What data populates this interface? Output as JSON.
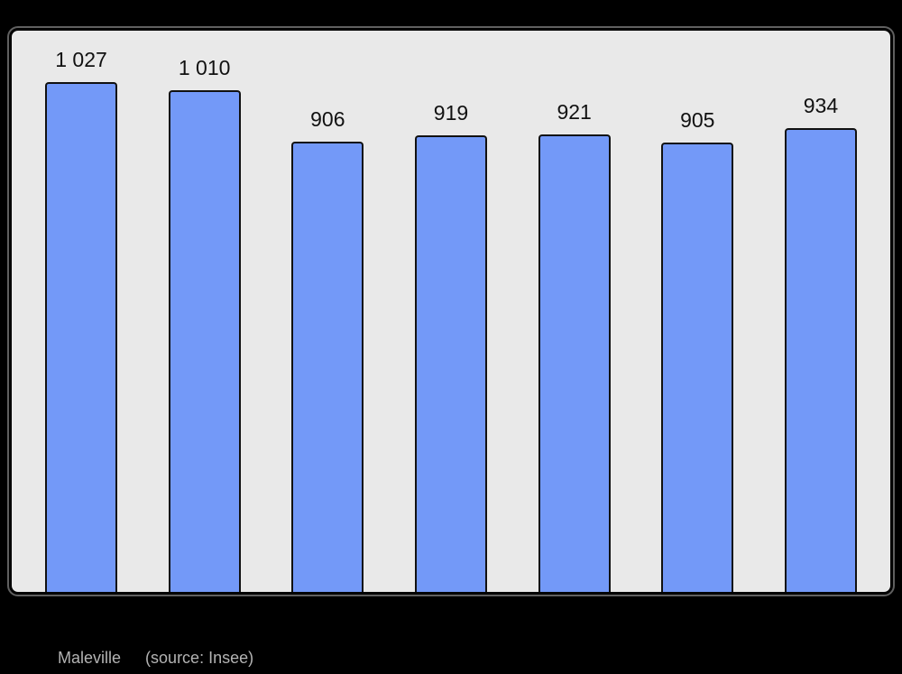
{
  "page": {
    "background_color": "#000000"
  },
  "chart_data": {
    "type": "bar",
    "values": [
      1027,
      1010,
      906,
      919,
      921,
      905,
      934
    ],
    "bar_labels": [
      "1 027",
      "1 010",
      "906",
      "919",
      "921",
      "905",
      "934"
    ],
    "title": "",
    "xlabel": "",
    "ylabel": "",
    "ylim": [
      0,
      1130
    ],
    "grid": false,
    "legend_position": "none",
    "bar_color": "#7399f8",
    "bar_border_color": "#111111",
    "value_label_color": "#111111",
    "plot_background": "#e9e9e9",
    "plot_border_color": "#000000"
  },
  "caption": {
    "place": "Maleville",
    "source": "(source: Insee)",
    "color": "#b3b3b3"
  }
}
